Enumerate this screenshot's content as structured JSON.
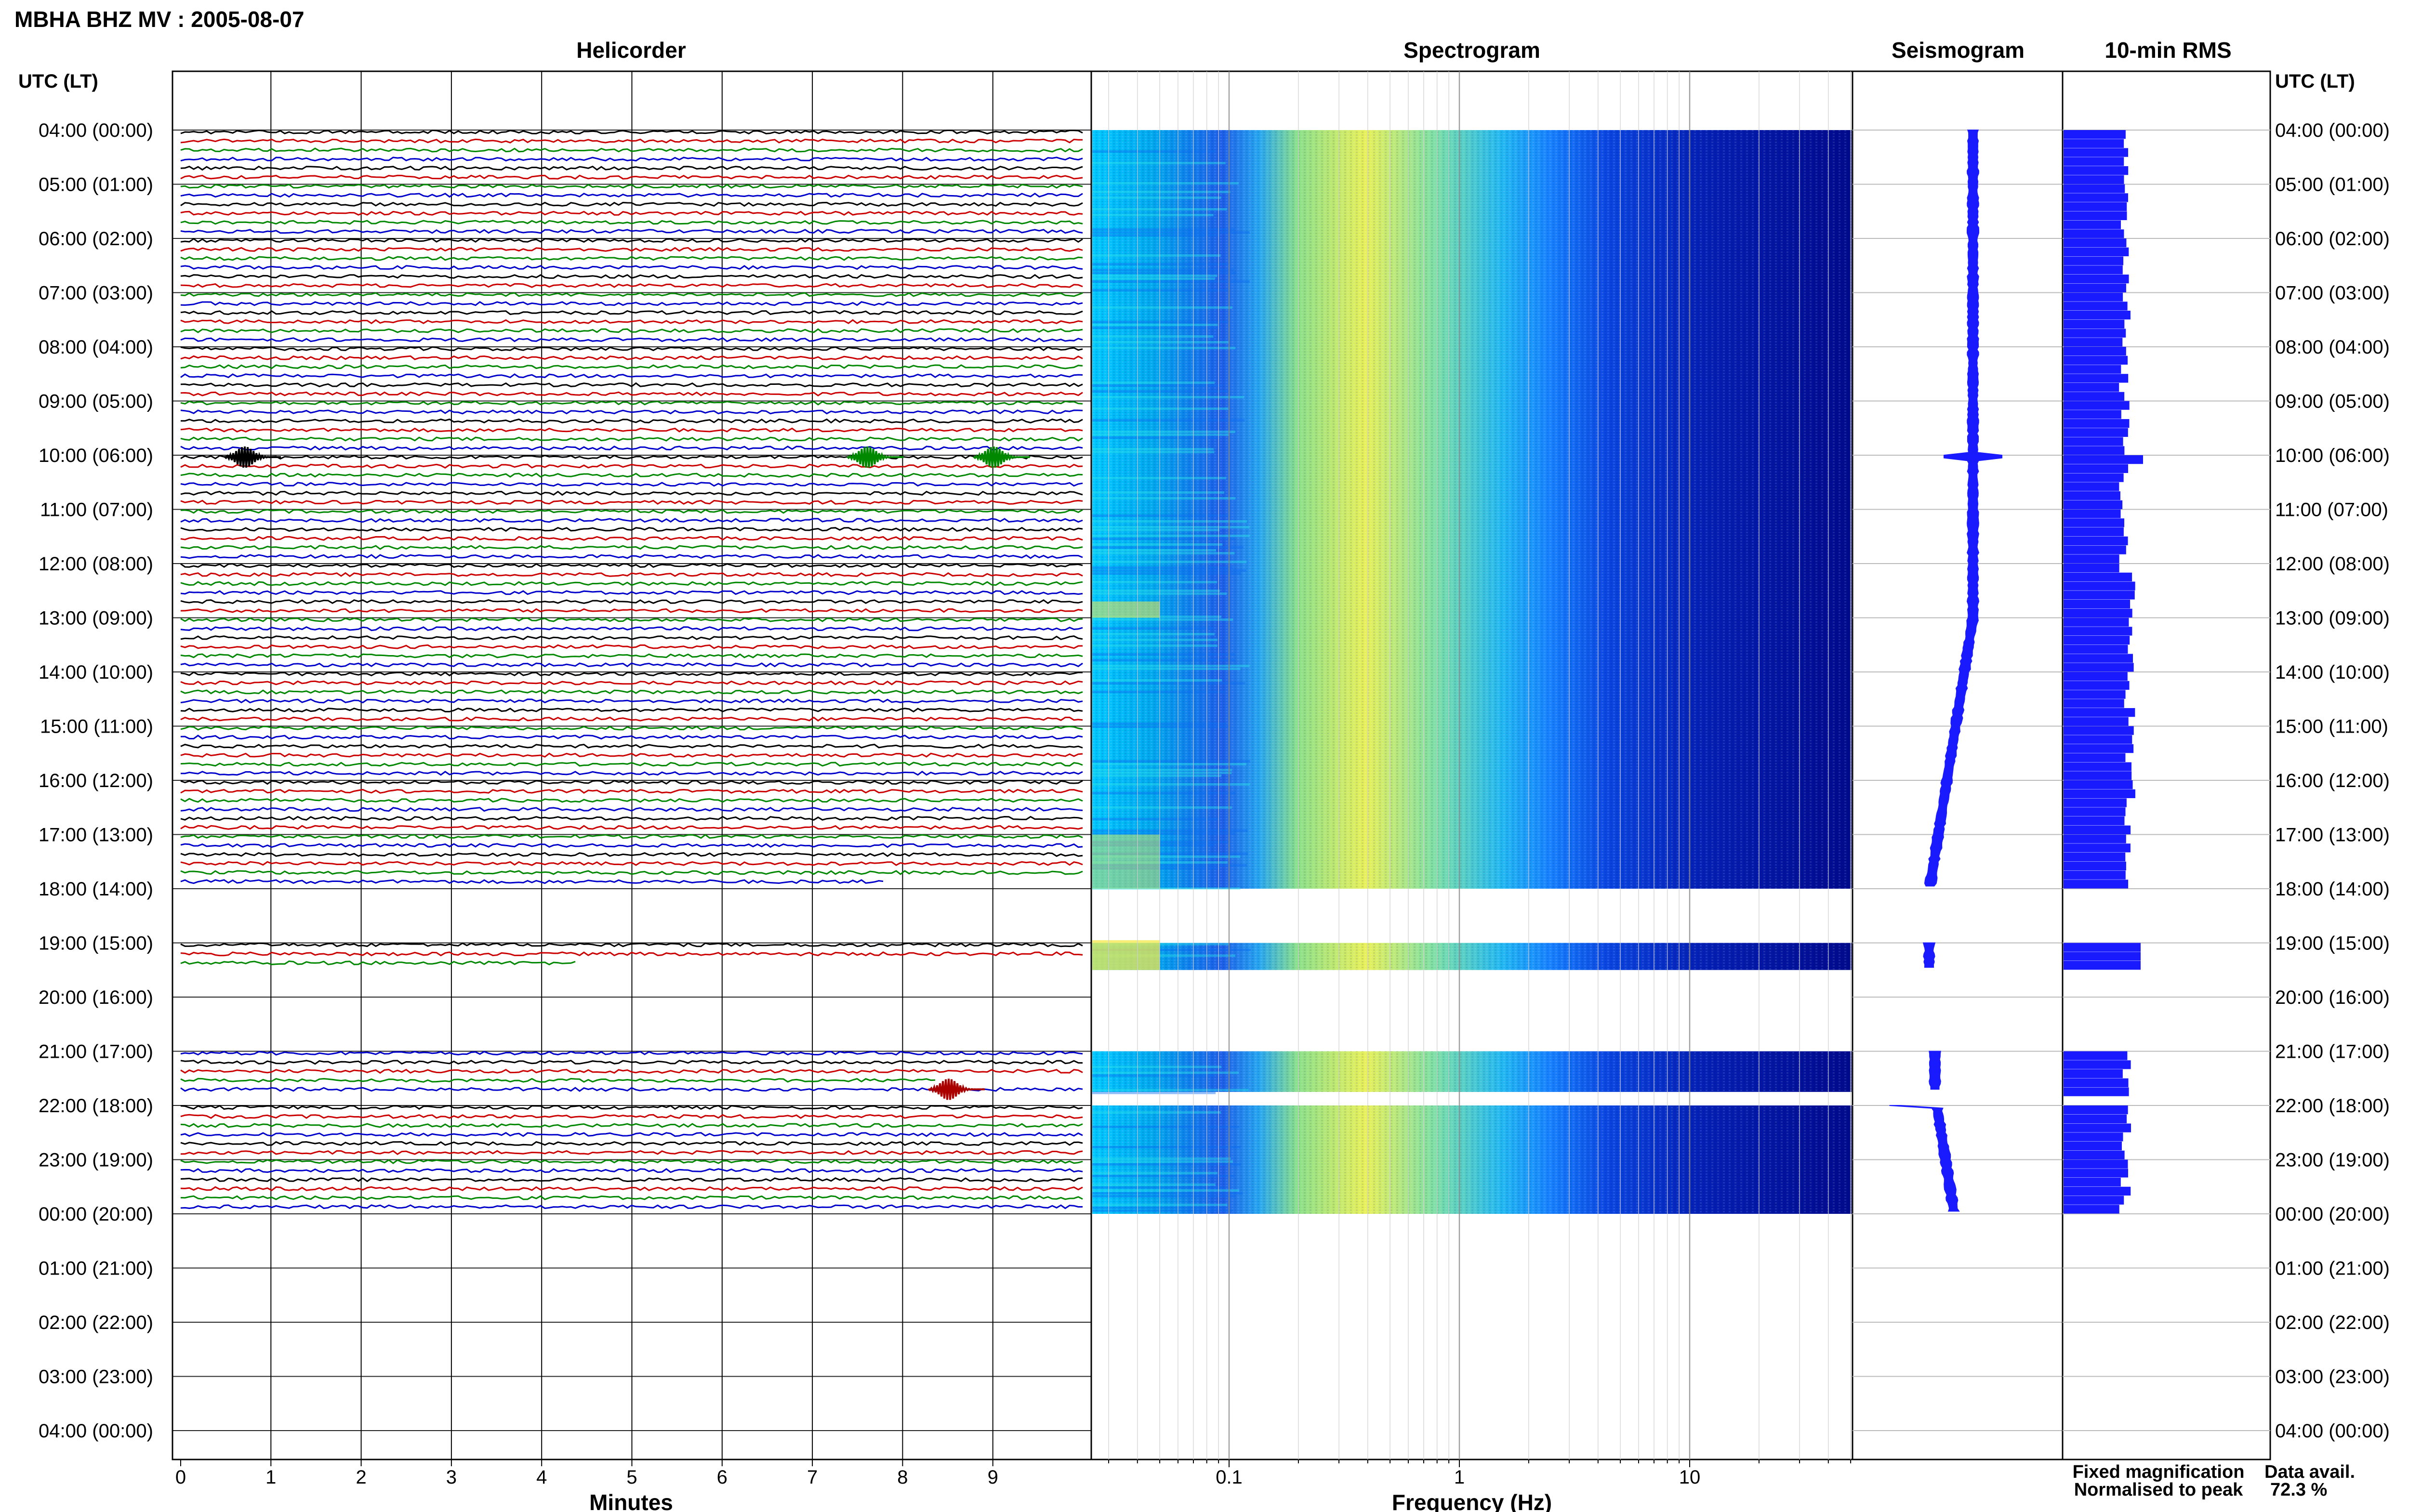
{
  "header": {
    "title": "MBHA BHZ MV : 2005-08-07"
  },
  "panels": {
    "helicorder": "Helicorder",
    "spectrogram": "Spectrogram",
    "seismogram": "Seismogram",
    "rms": "10-min RMS"
  },
  "axes": {
    "time_label_left": "UTC (LT)",
    "time_label_right": "UTC (LT)",
    "time_ticks": [
      "04:00 (00:00)",
      "05:00 (01:00)",
      "06:00 (02:00)",
      "07:00 (03:00)",
      "08:00 (04:00)",
      "09:00 (05:00)",
      "10:00 (06:00)",
      "11:00 (07:00)",
      "12:00 (08:00)",
      "13:00 (09:00)",
      "14:00 (10:00)",
      "15:00 (11:00)",
      "16:00 (12:00)",
      "17:00 (13:00)",
      "18:00 (14:00)",
      "19:00 (15:00)",
      "20:00 (16:00)",
      "21:00 (17:00)",
      "22:00 (18:00)",
      "23:00 (19:00)",
      "00:00 (20:00)",
      "01:00 (21:00)",
      "02:00 (22:00)",
      "03:00 (23:00)",
      "04:00 (00:00)"
    ],
    "minutes_label": "Minutes",
    "minutes_ticks": [
      "0",
      "1",
      "2",
      "3",
      "4",
      "5",
      "6",
      "7",
      "8",
      "9"
    ],
    "frequency_label": "Frequency (Hz)",
    "frequency_ticks": [
      "0.1",
      "1",
      "10"
    ]
  },
  "legend": {
    "fixed": "Fixed magnification",
    "normalised": "Normalised to peak",
    "fixed_color": "#0000ff",
    "normalised_color": "#ff0000"
  },
  "availability": {
    "label": "Data avail.",
    "value": "72.3 %"
  },
  "colors": {
    "trace_cycle": [
      "#000000",
      "#cc0000",
      "#008800",
      "#0000cc"
    ],
    "seismogram": "#1a1aff",
    "rms": "#1a1aff"
  },
  "chart_data": {
    "type": "heatmap",
    "title": "MBHA BHZ MV : 2005-08-07",
    "time_range_utc": [
      "04:00",
      "04:00"
    ],
    "minutes_range": [
      0,
      10
    ],
    "frequency_range_hz": [
      0.025,
      50
    ],
    "frequency_scale": "log",
    "data_gaps_utc": [
      [
        "18:00",
        "19:00"
      ],
      [
        "19:30",
        "21:00"
      ],
      [
        "21:45",
        "22:00"
      ],
      [
        "00:00",
        "04:00"
      ]
    ],
    "events": [
      {
        "time": "10:00",
        "minute": 0.7
      },
      {
        "time": "10:00",
        "minute": 7.6
      },
      {
        "time": "10:00",
        "minute": 9.0
      },
      {
        "time": "21:40",
        "minute": 8.5
      }
    ],
    "data_availability_percent": 72.3
  }
}
